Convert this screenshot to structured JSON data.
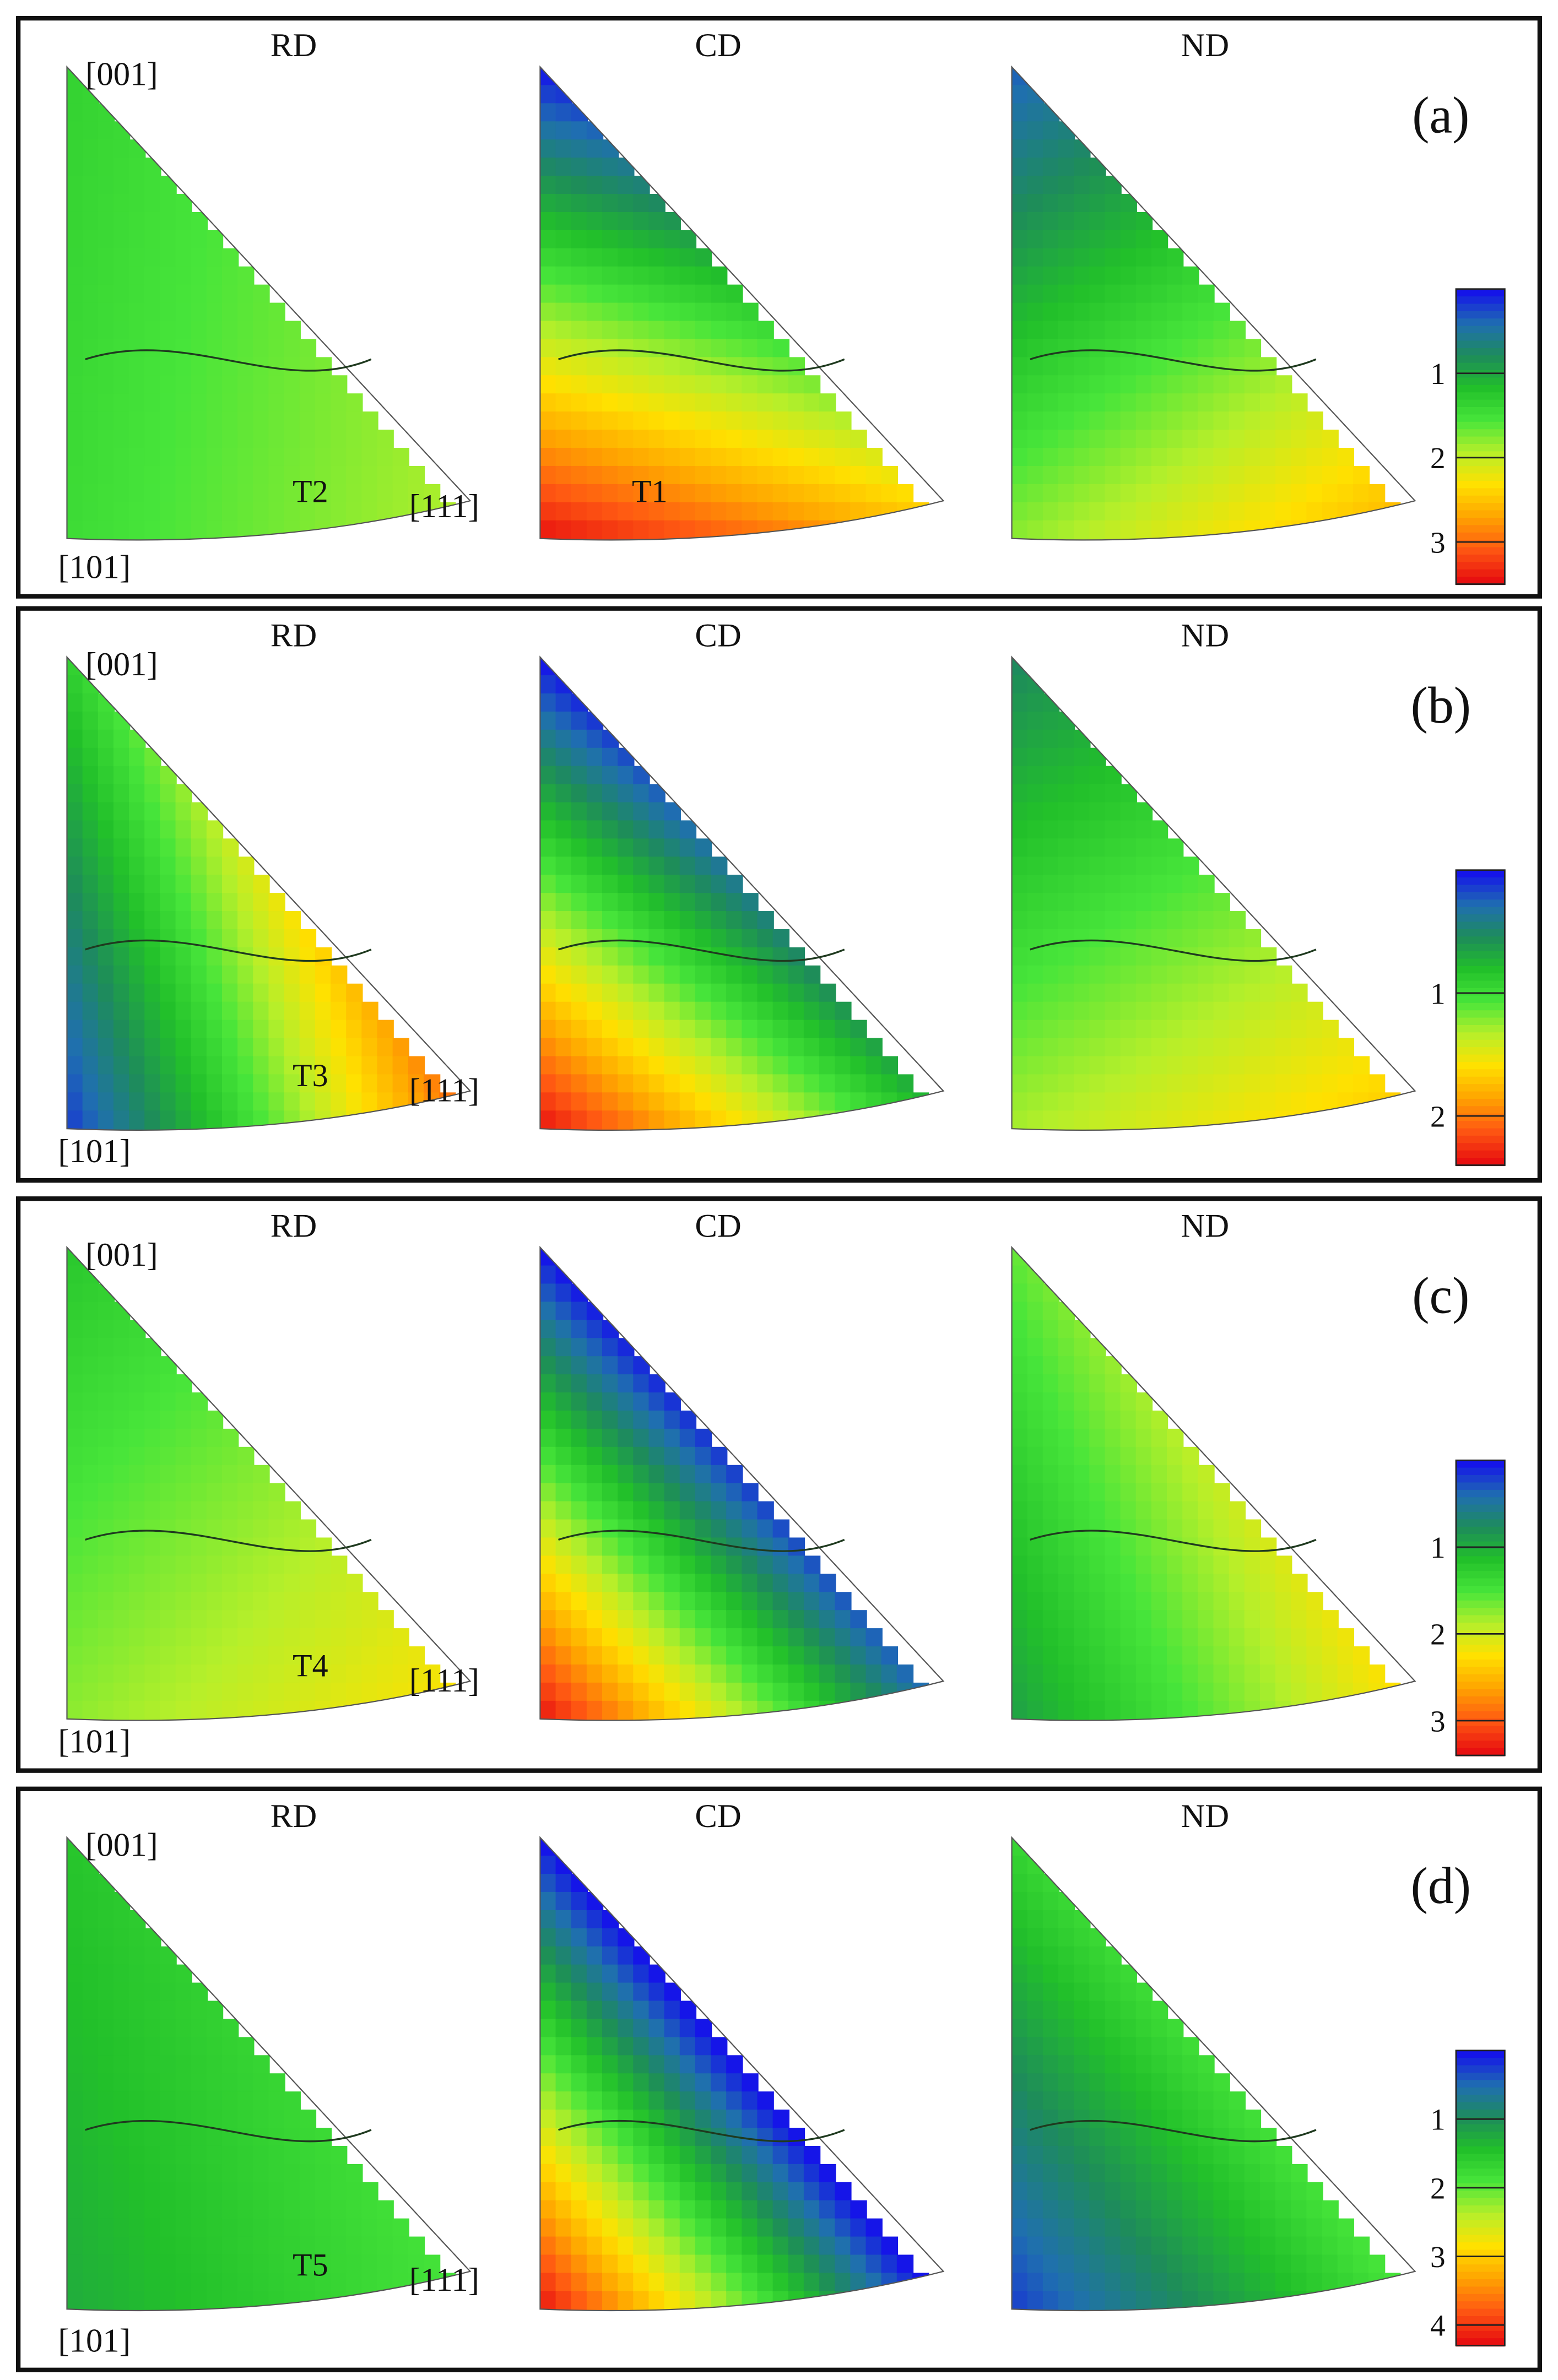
{
  "colors": {
    "frame": "#111111",
    "contour": "#1f3a1f",
    "scale": [
      "#1515e8",
      "#1f6fb0",
      "#1e8c5a",
      "#22c02a",
      "#47e53a",
      "#b6ef2a",
      "#ffe100",
      "#ffa500",
      "#ff5a12",
      "#e81010"
    ]
  },
  "panels": [
    {
      "label": "(a)",
      "directions": [
        "RD",
        "CD",
        "ND"
      ],
      "pole_labels": [
        "[001]",
        "[101]",
        "[111]"
      ],
      "annotations": [
        {
          "ipf": "RD",
          "text": "T2"
        },
        {
          "ipf": "CD",
          "text": "T1"
        }
      ],
      "colorbar_ticks": [
        "1",
        "2",
        "3"
      ],
      "colorbar_max": 3.5,
      "ipf_levels": {
        "RD": {
          "c001": 1.35,
          "c101": 1.45,
          "c111": 1.95
        },
        "CD": {
          "c001": 0.0,
          "c101": 3.5,
          "c111": 2.6
        },
        "ND": {
          "c001": 0.3,
          "c101": 1.8,
          "c111": 2.7
        }
      }
    },
    {
      "label": "(b)",
      "directions": [
        "RD",
        "CD",
        "ND"
      ],
      "pole_labels": [
        "[001]",
        "[101]",
        "[111]"
      ],
      "annotations": [
        {
          "ipf": "RD",
          "text": "T3"
        }
      ],
      "colorbar_ticks": [
        "1",
        "2"
      ],
      "colorbar_max": 2.4,
      "ipf_levels": {
        "RD": {
          "c001": 0.9,
          "c101": 0.1,
          "c111": 2.1
        },
        "CD": {
          "c001": 0.0,
          "c101": 2.4,
          "c111": 0.8
        },
        "ND": {
          "c001": 0.5,
          "c101": 1.3,
          "c111": 1.75
        }
      }
    },
    {
      "label": "(c)",
      "directions": [
        "RD",
        "CD",
        "ND"
      ],
      "pole_labels": [
        "[001]",
        "[101]",
        "[111]"
      ],
      "annotations": [
        {
          "ipf": "RD",
          "text": "T4"
        }
      ],
      "colorbar_ticks": [
        "1",
        "2",
        "3"
      ],
      "colorbar_max": 3.4,
      "ipf_levels": {
        "RD": {
          "c001": 1.2,
          "c101": 1.75,
          "c111": 2.3
        },
        "CD": {
          "c001": 0.0,
          "c101": 3.4,
          "c111": 0.4
        },
        "ND": {
          "c001": 1.6,
          "c101": 0.9,
          "c111": 2.3
        }
      }
    },
    {
      "label": "(d)",
      "directions": [
        "RD",
        "CD",
        "ND"
      ],
      "pole_labels": [
        "[001]",
        "[101]",
        "[111]"
      ],
      "annotations": [
        {
          "ipf": "RD",
          "text": "T5"
        }
      ],
      "colorbar_ticks": [
        "1",
        "2",
        "3",
        "4"
      ],
      "colorbar_max": 4.3,
      "ipf_levels": {
        "RD": {
          "c001": 1.5,
          "c101": 1.25,
          "c111": 1.9
        },
        "CD": {
          "c001": 0.0,
          "c101": 4.3,
          "c111": 0.0
        },
        "ND": {
          "c001": 1.7,
          "c101": 0.2,
          "c111": 1.9
        }
      }
    }
  ]
}
